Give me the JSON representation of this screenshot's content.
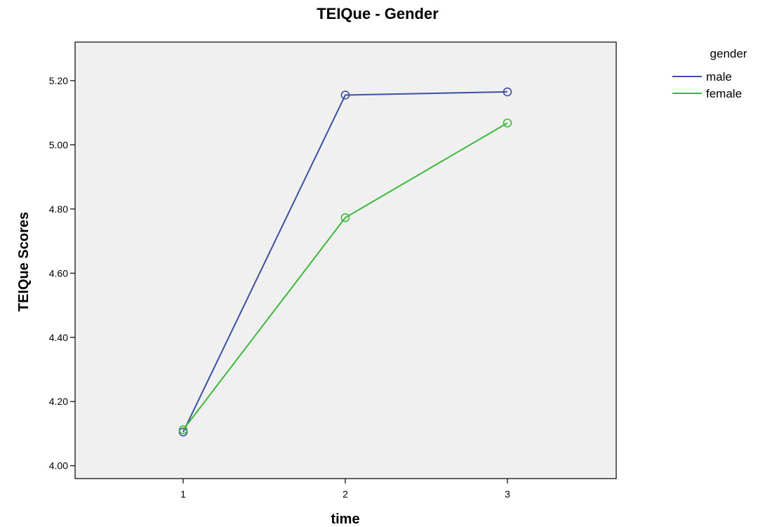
{
  "chart_data": {
    "type": "line",
    "title": "TEIQue - Gender",
    "xlabel": "time",
    "ylabel": "TEIQue Scores",
    "categories": [
      "1",
      "2",
      "3"
    ],
    "yticks": [
      "4.00",
      "4.20",
      "4.40",
      "4.60",
      "4.80",
      "5.00",
      "5.20"
    ],
    "ylim": [
      3.96,
      5.32
    ],
    "grid": false,
    "legend": {
      "title": "gender",
      "position": "top-right"
    },
    "series": [
      {
        "name": "male",
        "color": "#3d4fa0",
        "values": [
          4.105,
          5.155,
          5.165
        ]
      },
      {
        "name": "female",
        "color": "#3cb93c",
        "values": [
          4.112,
          4.773,
          5.068
        ]
      }
    ],
    "plot_background": "#f0f0f0"
  }
}
